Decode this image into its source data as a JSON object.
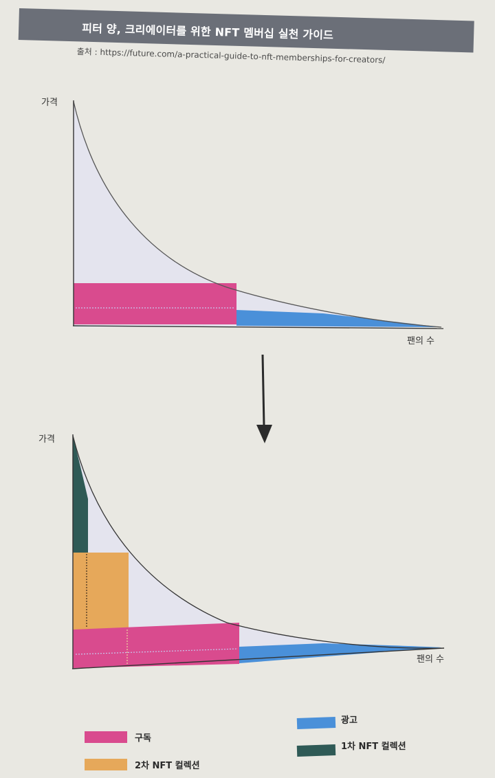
{
  "header": {
    "title": "피터 양, 크리에이터를 위한 NFT 멤버십 실천 가이드",
    "source": "출처 : https://future.com/a-practical-guide-to-nft-memberships-for-creators/"
  },
  "diagram_top": {
    "y_label": "가격",
    "x_label": "팬의 수"
  },
  "diagram_bottom": {
    "y_label": "가격",
    "x_label": "팬의 수"
  },
  "legend": {
    "subscription": "구독",
    "ads": "광고",
    "nft2": "2차 NFT 컬렉션",
    "nft1": "1차 NFT 컬렉션"
  },
  "colors": {
    "subscription": "#d94b8e",
    "ads": "#4a90d9",
    "nft2": "#e6a85a",
    "nft1": "#2f5a56",
    "area": "#e4e4ee",
    "banner": "#6b6f78"
  },
  "icons": {
    "arrow": "down-arrow-icon"
  }
}
